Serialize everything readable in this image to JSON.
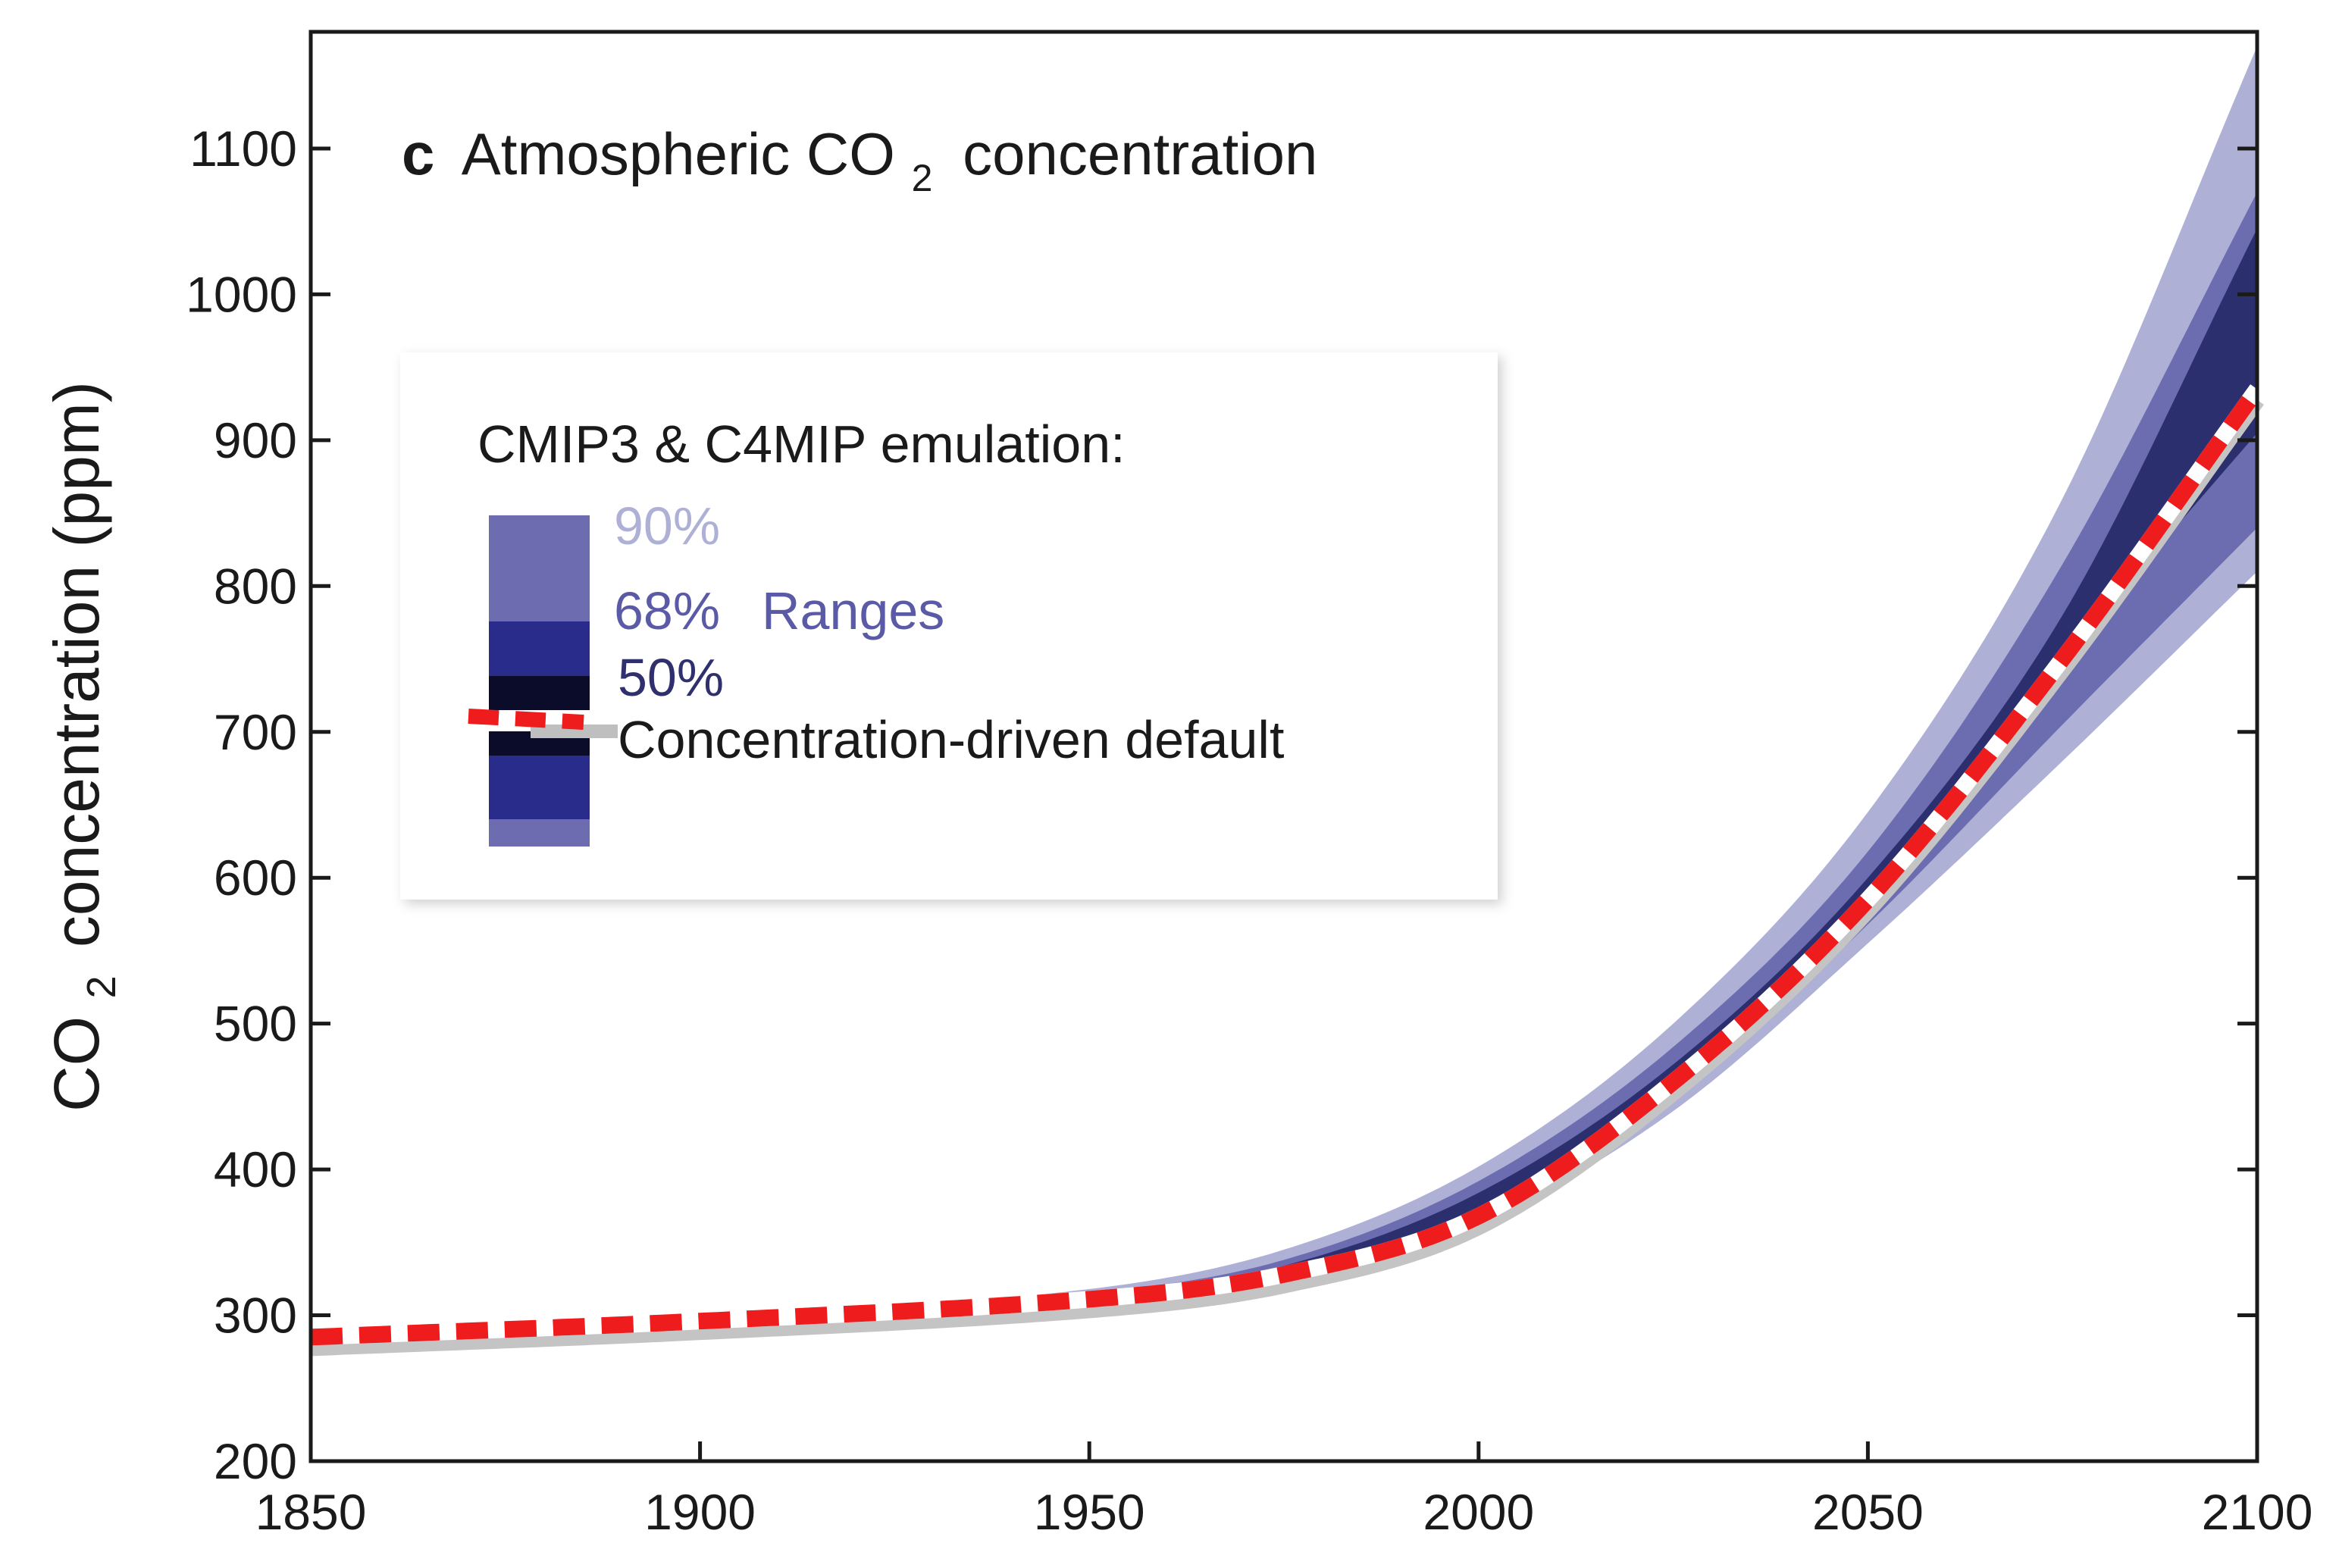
{
  "chart_data": {
    "type": "area",
    "panel_letter": "c",
    "title_prefix": "Atmospheric CO",
    "title_subscript": "2",
    "title_suffix": "concentration",
    "xlabel": "",
    "ylabel_prefix": "CO",
    "ylabel_subscript": "2",
    "ylabel_suffix": "concentration (ppm)",
    "xlim": [
      1850,
      2100
    ],
    "ylim": [
      200,
      1180
    ],
    "x_ticks": [
      1850,
      1900,
      1950,
      2000,
      2050,
      2100
    ],
    "y_ticks": [
      200,
      300,
      400,
      500,
      600,
      700,
      800,
      900,
      1000,
      1100
    ],
    "x": [
      1850,
      1900,
      1950,
      1975,
      2000,
      2025,
      2050,
      2075,
      2100
    ],
    "bands": [
      {
        "name": "90%",
        "color": "#aeb0d6",
        "lower": [
          282,
          293,
          308,
          320,
          362,
          440,
          555,
          680,
          810
        ],
        "upper": [
          285,
          297,
          318,
          345,
          402,
          500,
          645,
          860,
          1170
        ]
      },
      {
        "name": "68%",
        "color": "#6c6db0",
        "lower": [
          283,
          294,
          309,
          323,
          366,
          448,
          568,
          705,
          840
        ],
        "upper": [
          285,
          296,
          315,
          338,
          392,
          484,
          618,
          815,
          1070
        ]
      },
      {
        "name": "50%",
        "color": "#2b2f6e",
        "lower": [
          284,
          295,
          311,
          328,
          372,
          458,
          588,
          750,
          905
        ],
        "upper": [
          285,
          296,
          313,
          334,
          384,
          472,
          600,
          780,
          1045
        ]
      }
    ],
    "series": [
      {
        "name": "Concentration-driven default",
        "style": "dashed",
        "color": "#ee1c1c",
        "values": [
          285,
          296,
          311,
          328,
          368,
          460,
          585,
          750,
          935
        ]
      }
    ],
    "legend": {
      "title": "CMIP3 & C4MIP emulation:",
      "label_90": "90%",
      "label_68": "68%",
      "label_ranges": "Ranges",
      "label_50": "50%",
      "label_default": "Concentration-driven default",
      "color_90": "#aeb0d6",
      "color_68": "#5a5aa6",
      "color_50": "#30306e",
      "position": "upper-left"
    }
  }
}
